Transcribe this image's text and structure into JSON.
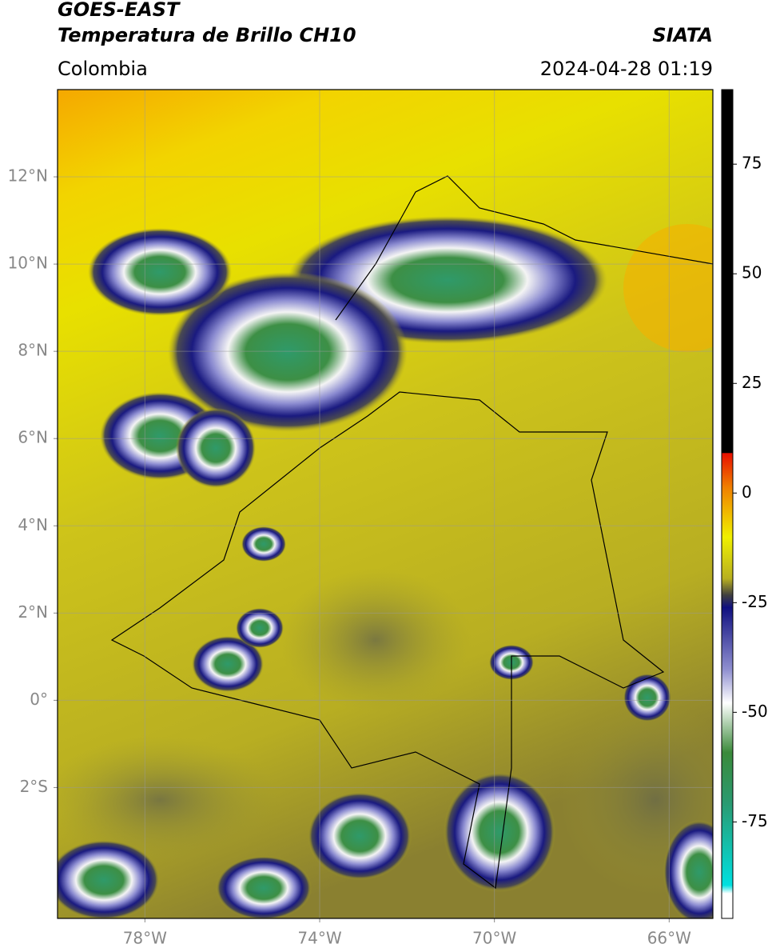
{
  "header": {
    "title_line1": "GOES-EAST",
    "title_line2": "Temperatura de Brillo CH10",
    "source": "SIATA",
    "region": "Colombia",
    "datetime": "2024-04-28 01:19"
  },
  "map": {
    "xlim": [
      -80,
      -65
    ],
    "ylim": [
      -5,
      14
    ],
    "xticks": [
      {
        "value": -78,
        "label": "78°W"
      },
      {
        "value": -74,
        "label": "74°W"
      },
      {
        "value": -70,
        "label": "70°W"
      },
      {
        "value": -66,
        "label": "66°W"
      }
    ],
    "yticks": [
      {
        "value": 12,
        "label": "12°N"
      },
      {
        "value": 10,
        "label": "10°N"
      },
      {
        "value": 8,
        "label": "8°N"
      },
      {
        "value": 6,
        "label": "6°N"
      },
      {
        "value": 4,
        "label": "4°N"
      },
      {
        "value": 2,
        "label": "2°N"
      },
      {
        "value": 0,
        "label": "0°"
      },
      {
        "value": -2,
        "label": "2°S"
      }
    ],
    "grid": true
  },
  "colorbar": {
    "lim": [
      -97,
      92
    ],
    "ticks": [
      75,
      50,
      25,
      0,
      -25,
      -50,
      -75
    ]
  }
}
